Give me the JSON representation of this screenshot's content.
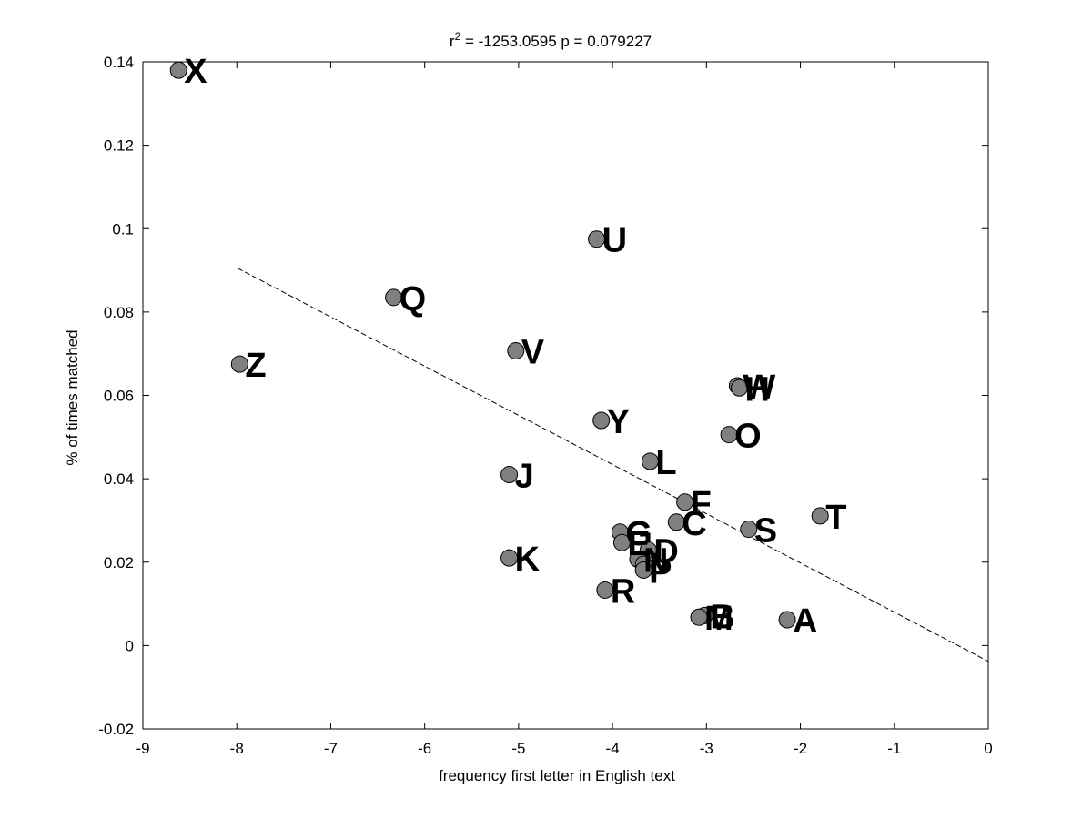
{
  "chart_data": {
    "type": "scatter",
    "title_prefix": "r",
    "title_sup": "2",
    "title_rest": " = -1253.0595 p = 0.079227",
    "xlabel": "frequency first letter in English text",
    "ylabel": "% of times matched",
    "xlim": [
      -9,
      0
    ],
    "ylim": [
      -0.02,
      0.14
    ],
    "xticks": [
      -9,
      -8,
      -7,
      -6,
      -5,
      -4,
      -3,
      -2,
      -1,
      0
    ],
    "xtick_labels": [
      "-9",
      "-8",
      "-7",
      "-6",
      "-5",
      "-4",
      "-3",
      "-2",
      "-1",
      "0"
    ],
    "yticks": [
      -0.02,
      0,
      0.02,
      0.04,
      0.06,
      0.08,
      0.1,
      0.12,
      0.14
    ],
    "ytick_labels": [
      "-0.02",
      "0",
      "0.02",
      "0.04",
      "0.06",
      "0.08",
      "0.1",
      "0.12",
      "0.14"
    ],
    "grid": false,
    "marker_color": "#808080",
    "fit_line": {
      "x": [
        -7.99,
        0.0
      ],
      "y": [
        0.0905,
        -0.0038
      ],
      "style": "dashed"
    },
    "points": [
      {
        "label": "X",
        "x": -8.62,
        "y": 0.138
      },
      {
        "label": "U",
        "x": -4.17,
        "y": 0.0975
      },
      {
        "label": "Q",
        "x": -6.33,
        "y": 0.0835
      },
      {
        "label": "V",
        "x": -5.03,
        "y": 0.0707
      },
      {
        "label": "Z",
        "x": -7.97,
        "y": 0.0675
      },
      {
        "label": "W",
        "x": -2.67,
        "y": 0.0623
      },
      {
        "label": "H",
        "x": -2.65,
        "y": 0.0618
      },
      {
        "label": "Y",
        "x": -4.12,
        "y": 0.054
      },
      {
        "label": "O",
        "x": -2.76,
        "y": 0.0506
      },
      {
        "label": "L",
        "x": -3.6,
        "y": 0.0442
      },
      {
        "label": "J",
        "x": -5.1,
        "y": 0.041
      },
      {
        "label": "F",
        "x": -3.23,
        "y": 0.0344
      },
      {
        "label": "T",
        "x": -1.79,
        "y": 0.0311
      },
      {
        "label": "C",
        "x": -3.32,
        "y": 0.0296
      },
      {
        "label": "S",
        "x": -2.55,
        "y": 0.0279
      },
      {
        "label": "G",
        "x": -3.92,
        "y": 0.0272
      },
      {
        "label": "E",
        "x": -3.9,
        "y": 0.0247
      },
      {
        "label": "D",
        "x": -3.62,
        "y": 0.0229
      },
      {
        "label": "K",
        "x": -5.1,
        "y": 0.021
      },
      {
        "label": "N",
        "x": -3.73,
        "y": 0.0207
      },
      {
        "label": "I",
        "x": -3.67,
        "y": 0.0195
      },
      {
        "label": "P",
        "x": -3.67,
        "y": 0.0181
      },
      {
        "label": "R",
        "x": -4.08,
        "y": 0.0133
      },
      {
        "label": "B",
        "x": -3.02,
        "y": 0.0072
      },
      {
        "label": "M",
        "x": -3.08,
        "y": 0.0068
      },
      {
        "label": "A",
        "x": -2.14,
        "y": 0.0062
      }
    ]
  }
}
